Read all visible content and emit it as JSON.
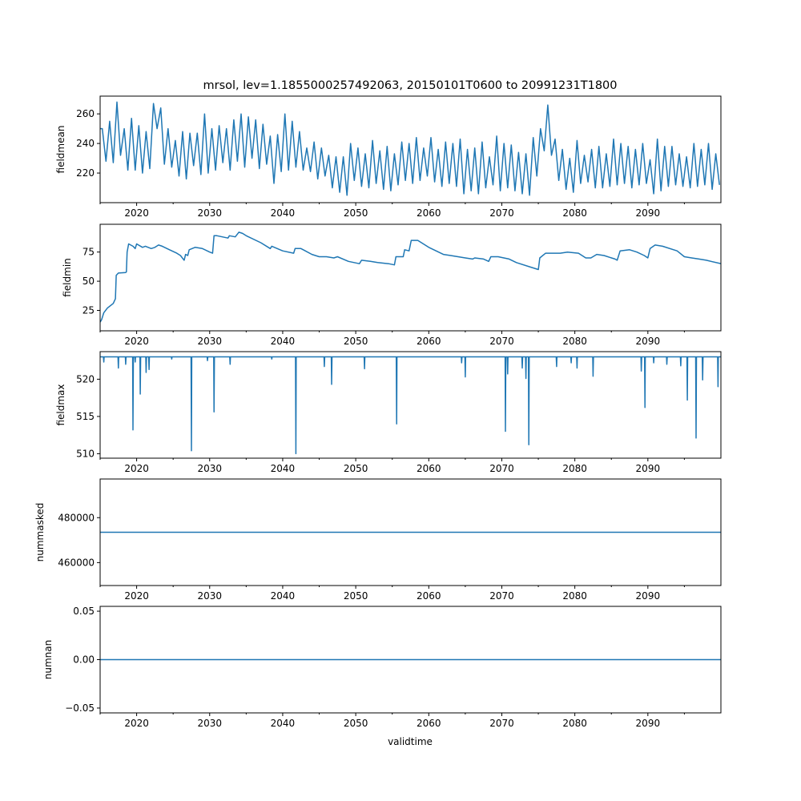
{
  "chart_data": {
    "type": "line",
    "title": "mrsol, lev=1.1855000257492063, 20150101T0600 to 20991231T1800",
    "xlabel": "validtime",
    "xlim": [
      2015,
      2100
    ],
    "x_ticks": [
      2020,
      2030,
      2040,
      2050,
      2060,
      2070,
      2080,
      2090
    ],
    "x_minor_ticks": [
      2015,
      2025,
      2035,
      2045,
      2055,
      2065,
      2075,
      2085,
      2095
    ],
    "color": "#1f77b4",
    "panels": [
      {
        "ylabel": "fieldmean",
        "ylim": [
          200,
          272
        ],
        "y_ticks": [
          220,
          240,
          260
        ],
        "y_tick_labels": [
          "220",
          "240",
          "260"
        ],
        "annual_peak_trough": [
          [
            250,
            228
          ],
          [
            255,
            227
          ],
          [
            268,
            232
          ],
          [
            250,
            222
          ],
          [
            257,
            222
          ],
          [
            252,
            220
          ],
          [
            248,
            223
          ],
          [
            267,
            250
          ],
          [
            264,
            226
          ],
          [
            250,
            224
          ],
          [
            242,
            218
          ],
          [
            248,
            216
          ],
          [
            247,
            225
          ],
          [
            247,
            219
          ],
          [
            260,
            220
          ],
          [
            250,
            222
          ],
          [
            252,
            227
          ],
          [
            250,
            222
          ],
          [
            256,
            228
          ],
          [
            260,
            224
          ],
          [
            258,
            230
          ],
          [
            256,
            223
          ],
          [
            253,
            226
          ],
          [
            245,
            213
          ],
          [
            246,
            221
          ],
          [
            260,
            222
          ],
          [
            255,
            224
          ],
          [
            248,
            222
          ],
          [
            237,
            221
          ],
          [
            241,
            216
          ],
          [
            237,
            218
          ],
          [
            232,
            210
          ],
          [
            231,
            207
          ],
          [
            231,
            205
          ],
          [
            240,
            215
          ],
          [
            237,
            211
          ],
          [
            233,
            210
          ],
          [
            242,
            213
          ],
          [
            235,
            209
          ],
          [
            238,
            208
          ],
          [
            233,
            212
          ],
          [
            241,
            215
          ],
          [
            240,
            213
          ],
          [
            244,
            215
          ],
          [
            237,
            218
          ],
          [
            244,
            214
          ],
          [
            236,
            211
          ],
          [
            241,
            213
          ],
          [
            240,
            211
          ],
          [
            243,
            206
          ],
          [
            236,
            208
          ],
          [
            237,
            206
          ],
          [
            241,
            210
          ],
          [
            231,
            212
          ],
          [
            245,
            208
          ],
          [
            240,
            210
          ],
          [
            239,
            208
          ],
          [
            234,
            206
          ],
          [
            233,
            205
          ],
          [
            244,
            218
          ],
          [
            250,
            235
          ],
          [
            266,
            232
          ],
          [
            243,
            215
          ],
          [
            236,
            209
          ],
          [
            230,
            207
          ],
          [
            242,
            213
          ],
          [
            232,
            214
          ],
          [
            236,
            210
          ],
          [
            238,
            210
          ],
          [
            233,
            211
          ],
          [
            243,
            212
          ],
          [
            240,
            213
          ],
          [
            238,
            210
          ],
          [
            236,
            212
          ],
          [
            240,
            213
          ],
          [
            229,
            206
          ],
          [
            243,
            208
          ],
          [
            238,
            211
          ],
          [
            238,
            212
          ],
          [
            233,
            211
          ],
          [
            231,
            210
          ],
          [
            240,
            211
          ],
          [
            236,
            212
          ],
          [
            240,
            209
          ],
          [
            233,
            212
          ]
        ]
      },
      {
        "ylabel": "fieldmin",
        "ylim": [
          7.5,
          98.8
        ],
        "y_ticks": [
          25,
          50,
          75
        ],
        "y_tick_labels": [
          "25",
          "50",
          "75"
        ],
        "points": [
          [
            2015,
            15
          ],
          [
            2015.2,
            17
          ],
          [
            2015.5,
            23
          ],
          [
            2016,
            27
          ],
          [
            2016.8,
            31
          ],
          [
            2017.1,
            35
          ],
          [
            2017.2,
            55
          ],
          [
            2017.5,
            57
          ],
          [
            2018.5,
            57.5
          ],
          [
            2018.6,
            58
          ],
          [
            2018.7,
            75
          ],
          [
            2018.9,
            82
          ],
          [
            2019.5,
            80
          ],
          [
            2019.8,
            78
          ],
          [
            2020,
            82
          ],
          [
            2020.8,
            79
          ],
          [
            2021.2,
            80
          ],
          [
            2022,
            78
          ],
          [
            2022.5,
            79
          ],
          [
            2023,
            81
          ],
          [
            2023.5,
            80
          ],
          [
            2024.5,
            77
          ],
          [
            2025.5,
            74
          ],
          [
            2026,
            72
          ],
          [
            2026.5,
            68
          ],
          [
            2026.7,
            73
          ],
          [
            2027,
            72
          ],
          [
            2027.2,
            77
          ],
          [
            2028,
            79
          ],
          [
            2029,
            78
          ],
          [
            2030,
            75
          ],
          [
            2030.4,
            74
          ],
          [
            2030.6,
            89
          ],
          [
            2031,
            89
          ],
          [
            2032.5,
            87
          ],
          [
            2032.7,
            89
          ],
          [
            2033.5,
            88
          ],
          [
            2034,
            92
          ],
          [
            2034.5,
            91
          ],
          [
            2035,
            89
          ],
          [
            2037,
            83
          ],
          [
            2038.3,
            78
          ],
          [
            2038.5,
            80
          ],
          [
            2040,
            76
          ],
          [
            2041.5,
            74
          ],
          [
            2041.7,
            78
          ],
          [
            2042.5,
            78
          ],
          [
            2044,
            73
          ],
          [
            2045,
            71
          ],
          [
            2046,
            71
          ],
          [
            2047,
            70
          ],
          [
            2047.5,
            71
          ],
          [
            2049,
            67
          ],
          [
            2050.5,
            65
          ],
          [
            2050.8,
            68
          ],
          [
            2052,
            67
          ],
          [
            2053,
            66
          ],
          [
            2054.5,
            65
          ],
          [
            2055.3,
            64
          ],
          [
            2055.5,
            71
          ],
          [
            2056.5,
            71
          ],
          [
            2056.7,
            77
          ],
          [
            2057.3,
            76
          ],
          [
            2057.6,
            85
          ],
          [
            2058.5,
            85
          ],
          [
            2060,
            79
          ],
          [
            2062,
            73
          ],
          [
            2063,
            72
          ],
          [
            2064,
            71
          ],
          [
            2065,
            70
          ],
          [
            2066,
            69
          ],
          [
            2066.3,
            70
          ],
          [
            2067.5,
            69
          ],
          [
            2068.2,
            67
          ],
          [
            2068.5,
            71
          ],
          [
            2069.5,
            71
          ],
          [
            2071,
            69
          ],
          [
            2072,
            66
          ],
          [
            2074,
            62
          ],
          [
            2075,
            60
          ],
          [
            2075.2,
            70
          ],
          [
            2076,
            74
          ],
          [
            2078,
            74
          ],
          [
            2079,
            75
          ],
          [
            2080.5,
            74
          ],
          [
            2081.5,
            70
          ],
          [
            2082.2,
            70
          ],
          [
            2083,
            73
          ],
          [
            2084,
            72
          ],
          [
            2085.5,
            69
          ],
          [
            2085.8,
            68
          ],
          [
            2086.2,
            76
          ],
          [
            2087.5,
            77
          ],
          [
            2088.5,
            75
          ],
          [
            2089.5,
            72
          ],
          [
            2090,
            70
          ],
          [
            2090.3,
            78
          ],
          [
            2091,
            81
          ],
          [
            2092,
            80
          ],
          [
            2094,
            76
          ],
          [
            2095,
            71
          ],
          [
            2096,
            70
          ],
          [
            2097,
            69
          ],
          [
            2098,
            68
          ],
          [
            2100,
            65
          ]
        ]
      },
      {
        "ylabel": "fieldmax",
        "ylim": [
          509.4,
          523.7
        ],
        "y_ticks": [
          510,
          515,
          520
        ],
        "y_tick_labels": [
          "510",
          "515",
          "520"
        ],
        "baseline": 523,
        "dips": [
          [
            2015.5,
            522.3
          ],
          [
            2017.5,
            521.5
          ],
          [
            2018.5,
            522
          ],
          [
            2019.5,
            513.2
          ],
          [
            2019.8,
            522.3
          ],
          [
            2020.5,
            518
          ],
          [
            2021.3,
            520.9
          ],
          [
            2021.7,
            521.3
          ],
          [
            2024.8,
            522.7
          ],
          [
            2027.5,
            510.4
          ],
          [
            2029.7,
            522.5
          ],
          [
            2030.6,
            515.6
          ],
          [
            2032.8,
            522
          ],
          [
            2038.5,
            522.7
          ],
          [
            2041.8,
            510
          ],
          [
            2045.7,
            521.7
          ],
          [
            2046.7,
            519.3
          ],
          [
            2051.2,
            521.4
          ],
          [
            2055.6,
            514
          ],
          [
            2064.5,
            522.2
          ],
          [
            2065,
            520.3
          ],
          [
            2070.5,
            513
          ],
          [
            2070.8,
            520.7
          ],
          [
            2072.8,
            521.5
          ],
          [
            2073.3,
            520.1
          ],
          [
            2073.7,
            511.2
          ],
          [
            2077.5,
            521.7
          ],
          [
            2079.5,
            522.2
          ],
          [
            2080.3,
            521.5
          ],
          [
            2082.5,
            520.4
          ],
          [
            2089.1,
            521.1
          ],
          [
            2089.6,
            516.2
          ],
          [
            2090.8,
            522.2
          ],
          [
            2092.6,
            522
          ],
          [
            2094.5,
            521.8
          ],
          [
            2095.4,
            517.2
          ],
          [
            2096.6,
            512.1
          ],
          [
            2097.5,
            519.9
          ],
          [
            2099.6,
            519
          ]
        ]
      },
      {
        "ylabel": "nummasked",
        "ylim": [
          449800,
          497200
        ],
        "y_ticks": [
          460000,
          480000
        ],
        "y_tick_labels": [
          "460000",
          "480000"
        ],
        "constant": 473500
      },
      {
        "ylabel": "numnan",
        "ylim": [
          -0.055,
          0.055
        ],
        "y_ticks": [
          -0.05,
          0,
          0.05
        ],
        "y_tick_labels": [
          "−0.05",
          "0.00",
          "0.05"
        ],
        "constant": 0
      }
    ]
  }
}
